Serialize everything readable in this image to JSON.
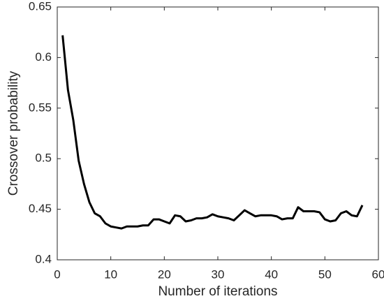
{
  "chart_data": {
    "type": "line",
    "xlabel": "Number of iterations",
    "ylabel": "Crossover probability",
    "x": [
      1,
      2,
      3,
      4,
      5,
      6,
      7,
      8,
      9,
      10,
      11,
      12,
      13,
      14,
      15,
      16,
      17,
      18,
      19,
      20,
      21,
      22,
      23,
      24,
      25,
      26,
      27,
      28,
      29,
      30,
      31,
      32,
      33,
      34,
      35,
      36,
      37,
      38,
      39,
      40,
      41,
      42,
      43,
      44,
      45,
      46,
      47,
      48,
      49,
      50,
      51,
      52,
      53,
      54,
      55,
      56,
      57
    ],
    "series": [
      {
        "color": "#000000",
        "values": [
          0.622,
          0.568,
          0.538,
          0.498,
          0.475,
          0.457,
          0.446,
          0.443,
          0.436,
          0.433,
          0.432,
          0.431,
          0.433,
          0.433,
          0.433,
          0.434,
          0.434,
          0.44,
          0.44,
          0.438,
          0.436,
          0.444,
          0.443,
          0.438,
          0.439,
          0.441,
          0.441,
          0.442,
          0.445,
          0.443,
          0.442,
          0.441,
          0.439,
          0.444,
          0.449,
          0.446,
          0.443,
          0.444,
          0.444,
          0.444,
          0.443,
          0.44,
          0.441,
          0.441,
          0.452,
          0.448,
          0.448,
          0.448,
          0.447,
          0.44,
          0.438,
          0.439,
          0.446,
          0.448,
          0.444,
          0.443,
          0.454
        ]
      }
    ],
    "xlim": [
      0,
      60
    ],
    "xticks": [
      0,
      10,
      20,
      30,
      40,
      50,
      60
    ],
    "ylim": [
      0.4,
      0.65
    ],
    "yticks": [
      0.4,
      0.45,
      0.5,
      0.55,
      0.6,
      0.65
    ],
    "grid": false
  }
}
